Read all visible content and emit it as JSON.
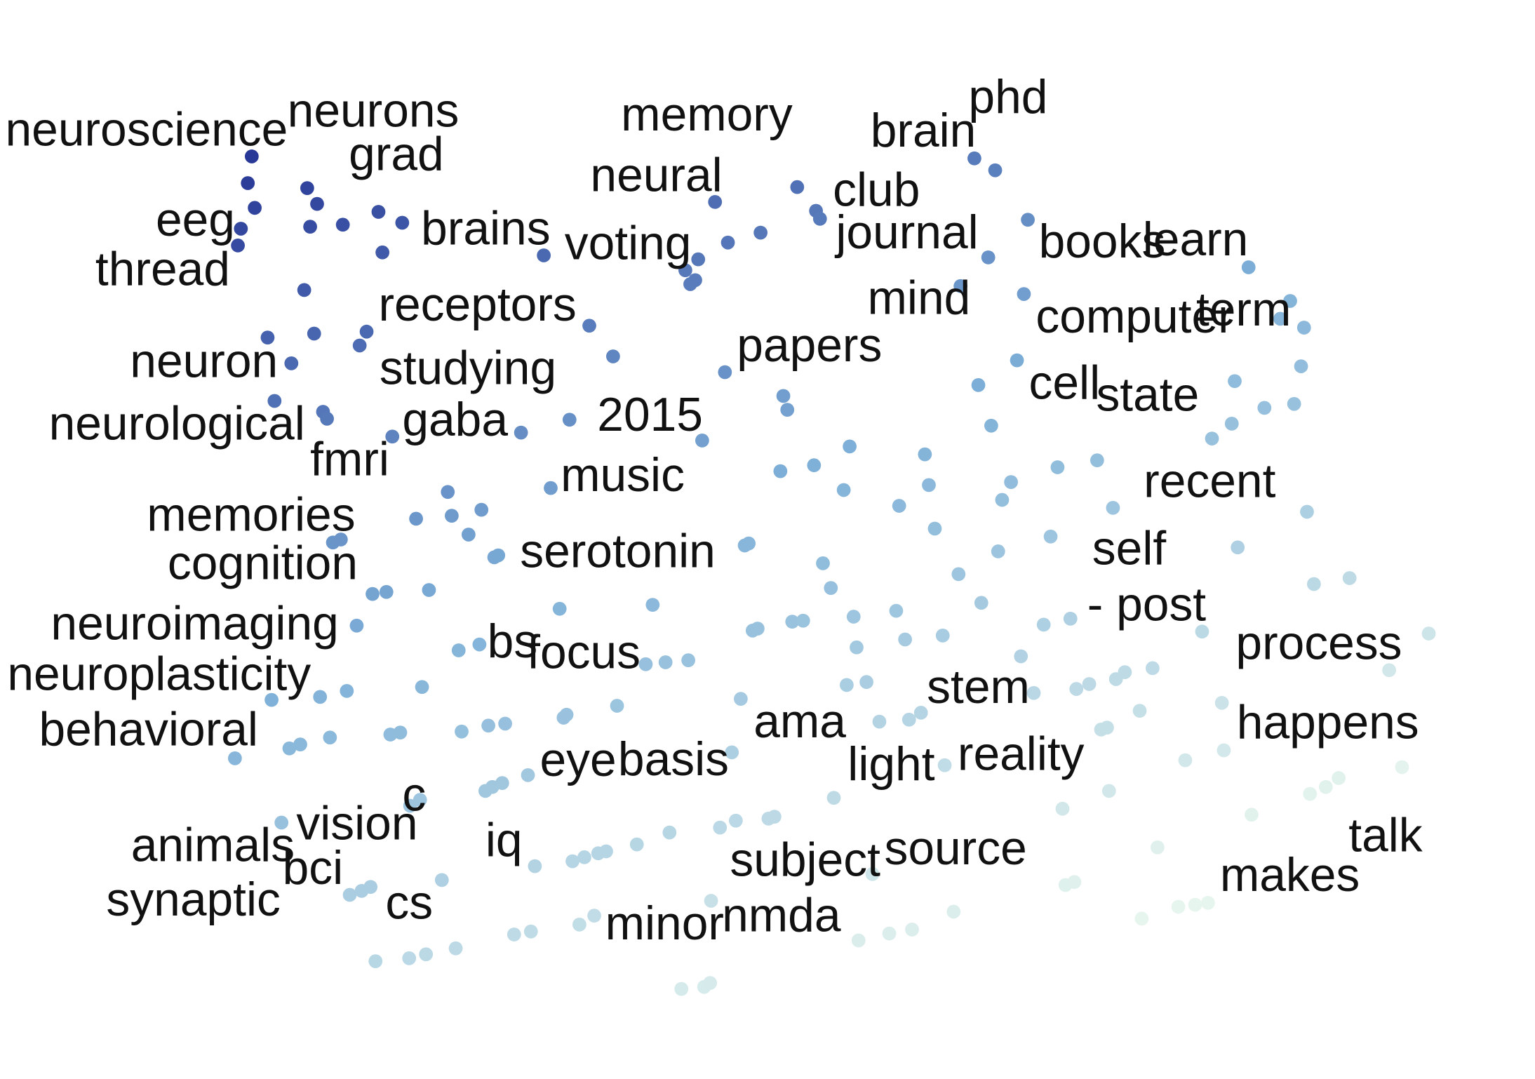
{
  "chart_data": {
    "type": "scatter",
    "title": "",
    "xlabel": "",
    "ylabel": "",
    "xlim": [
      0,
      1550
    ],
    "ylim": [
      0,
      1090
    ],
    "grid": false,
    "legend": "none",
    "color_scale": {
      "low": "#e6f5ee",
      "mid": "#7eb0d8",
      "high": "#253494"
    },
    "labels": [
      {
        "text": "neuroscience",
        "x": 5,
        "y": 135
      },
      {
        "text": "neurons",
        "x": 290,
        "y": 116
      },
      {
        "text": "memory",
        "x": 627,
        "y": 120
      },
      {
        "text": "phd",
        "x": 978,
        "y": 102
      },
      {
        "text": "brain",
        "x": 879,
        "y": 136
      },
      {
        "text": "grad",
        "x": 352,
        "y": 160
      },
      {
        "text": "neural",
        "x": 596,
        "y": 181
      },
      {
        "text": "club",
        "x": 841,
        "y": 196
      },
      {
        "text": "eeg",
        "x": 157,
        "y": 226
      },
      {
        "text": "brains",
        "x": 425,
        "y": 235
      },
      {
        "text": "voting",
        "x": 570,
        "y": 250
      },
      {
        "text": "journal",
        "x": 844,
        "y": 239
      },
      {
        "text": "books",
        "x": 1049,
        "y": 248
      },
      {
        "text": "learn",
        "x": 1154,
        "y": 246
      },
      {
        "text": "thread",
        "x": 96,
        "y": 276
      },
      {
        "text": "mind",
        "x": 876,
        "y": 305
      },
      {
        "text": "receptors",
        "x": 382,
        "y": 312
      },
      {
        "text": "computer",
        "x": 1046,
        "y": 324
      },
      {
        "text": "term",
        "x": 1208,
        "y": 317
      },
      {
        "text": "papers",
        "x": 744,
        "y": 353
      },
      {
        "text": "neuron",
        "x": 131,
        "y": 369
      },
      {
        "text": "studying",
        "x": 383,
        "y": 376
      },
      {
        "text": "cell",
        "x": 1039,
        "y": 391
      },
      {
        "text": "state",
        "x": 1107,
        "y": 403
      },
      {
        "text": "neurological",
        "x": 49,
        "y": 432
      },
      {
        "text": "gaba",
        "x": 406,
        "y": 428
      },
      {
        "text": "2015",
        "x": 603,
        "y": 423
      },
      {
        "text": "fmri",
        "x": 313,
        "y": 468
      },
      {
        "text": "music",
        "x": 566,
        "y": 484
      },
      {
        "text": "recent",
        "x": 1155,
        "y": 490
      },
      {
        "text": "memories",
        "x": 148,
        "y": 524
      },
      {
        "text": "serotonin",
        "x": 525,
        "y": 561
      },
      {
        "text": "self",
        "x": 1103,
        "y": 558
      },
      {
        "text": "cognition",
        "x": 169,
        "y": 573
      },
      {
        "text": "- post",
        "x": 1098,
        "y": 615
      },
      {
        "text": "neuroimaging",
        "x": 51,
        "y": 634
      },
      {
        "text": "bs",
        "x": 492,
        "y": 652
      },
      {
        "text": "focus",
        "x": 532,
        "y": 663
      },
      {
        "text": "process",
        "x": 1248,
        "y": 654
      },
      {
        "text": "neuroplasticity",
        "x": 7,
        "y": 685
      },
      {
        "text": "stem",
        "x": 936,
        "y": 698
      },
      {
        "text": "behavioral",
        "x": 39,
        "y": 741
      },
      {
        "text": "ama",
        "x": 761,
        "y": 733
      },
      {
        "text": "happens",
        "x": 1249,
        "y": 734
      },
      {
        "text": "reality",
        "x": 967,
        "y": 766
      },
      {
        "text": "eye",
        "x": 545,
        "y": 772
      },
      {
        "text": "basis",
        "x": 624,
        "y": 771
      },
      {
        "text": "light",
        "x": 856,
        "y": 776
      },
      {
        "text": "c",
        "x": 406,
        "y": 807
      },
      {
        "text": "vision",
        "x": 299,
        "y": 836
      },
      {
        "text": "iq",
        "x": 490,
        "y": 853
      },
      {
        "text": "talk",
        "x": 1362,
        "y": 848
      },
      {
        "text": "animals",
        "x": 132,
        "y": 858
      },
      {
        "text": "subject",
        "x": 737,
        "y": 873
      },
      {
        "text": "source",
        "x": 893,
        "y": 861
      },
      {
        "text": "bci",
        "x": 285,
        "y": 881
      },
      {
        "text": "makes",
        "x": 1232,
        "y": 888
      },
      {
        "text": "synaptic",
        "x": 107,
        "y": 913
      },
      {
        "text": "cs",
        "x": 389,
        "y": 916
      },
      {
        "text": "nmda",
        "x": 729,
        "y": 929
      },
      {
        "text": "minor",
        "x": 611,
        "y": 937
      }
    ],
    "points": [
      [
        254,
        158
      ],
      [
        250,
        185
      ],
      [
        257,
        210
      ],
      [
        243,
        231
      ],
      [
        240,
        248
      ],
      [
        310,
        190
      ],
      [
        320,
        206
      ],
      [
        313,
        229
      ],
      [
        346,
        227
      ],
      [
        382,
        214
      ],
      [
        406,
        225
      ],
      [
        386,
        255
      ],
      [
        549,
        258
      ],
      [
        307,
        293
      ],
      [
        270,
        341
      ],
      [
        317,
        337
      ],
      [
        370,
        335
      ],
      [
        363,
        349
      ],
      [
        294,
        367
      ],
      [
        277,
        405
      ],
      [
        326,
        416
      ],
      [
        330,
        423
      ],
      [
        396,
        441
      ],
      [
        526,
        437
      ],
      [
        575,
        424
      ],
      [
        595,
        329
      ],
      [
        619,
        360
      ],
      [
        722,
        204
      ],
      [
        805,
        189
      ],
      [
        824,
        213
      ],
      [
        828,
        221
      ],
      [
        768,
        235
      ],
      [
        735,
        245
      ],
      [
        705,
        262
      ],
      [
        692,
        273
      ],
      [
        697,
        287
      ],
      [
        702,
        283
      ],
      [
        732,
        376
      ],
      [
        791,
        400
      ],
      [
        795,
        414
      ],
      [
        709,
        445
      ],
      [
        984,
        160
      ],
      [
        1005,
        172
      ],
      [
        1038,
        222
      ],
      [
        998,
        260
      ],
      [
        970,
        289
      ],
      [
        1034,
        297
      ],
      [
        1027,
        364
      ],
      [
        988,
        389
      ],
      [
        1001,
        430
      ],
      [
        1261,
        270
      ],
      [
        1303,
        304
      ],
      [
        1293,
        322
      ],
      [
        1317,
        331
      ],
      [
        1314,
        370
      ],
      [
        1247,
        385
      ],
      [
        1244,
        428
      ],
      [
        1224,
        443
      ],
      [
        1277,
        412
      ],
      [
        1307,
        408
      ],
      [
        1320,
        517
      ],
      [
        1250,
        553
      ],
      [
        788,
        476
      ],
      [
        822,
        470
      ],
      [
        858,
        451
      ],
      [
        852,
        495
      ],
      [
        934,
        459
      ],
      [
        938,
        490
      ],
      [
        908,
        511
      ],
      [
        944,
        534
      ],
      [
        1021,
        487
      ],
      [
        1012,
        505
      ],
      [
        1068,
        472
      ],
      [
        1108,
        465
      ],
      [
        1124,
        513
      ],
      [
        1061,
        542
      ],
      [
        1008,
        557
      ],
      [
        968,
        580
      ],
      [
        991,
        609
      ],
      [
        1054,
        631
      ],
      [
        1081,
        625
      ],
      [
        452,
        497
      ],
      [
        420,
        524
      ],
      [
        456,
        521
      ],
      [
        486,
        515
      ],
      [
        473,
        540
      ],
      [
        499,
        563
      ],
      [
        503,
        561
      ],
      [
        556,
        493
      ],
      [
        752,
        551
      ],
      [
        756,
        549
      ],
      [
        831,
        569
      ],
      [
        839,
        594
      ],
      [
        336,
        548
      ],
      [
        344,
        545
      ],
      [
        376,
        600
      ],
      [
        390,
        598
      ],
      [
        433,
        596
      ],
      [
        360,
        632
      ],
      [
        565,
        615
      ],
      [
        659,
        611
      ],
      [
        862,
        623
      ],
      [
        905,
        617
      ],
      [
        765,
        635
      ],
      [
        760,
        637
      ],
      [
        800,
        628
      ],
      [
        811,
        627
      ],
      [
        865,
        654
      ],
      [
        914,
        646
      ],
      [
        952,
        642
      ],
      [
        463,
        657
      ],
      [
        484,
        651
      ],
      [
        652,
        671
      ],
      [
        672,
        669
      ],
      [
        695,
        667
      ],
      [
        274,
        707
      ],
      [
        323,
        704
      ],
      [
        350,
        698
      ],
      [
        426,
        694
      ],
      [
        572,
        722
      ],
      [
        569,
        725
      ],
      [
        623,
        713
      ],
      [
        748,
        706
      ],
      [
        855,
        692
      ],
      [
        875,
        689
      ],
      [
        292,
        756
      ],
      [
        303,
        752
      ],
      [
        237,
        766
      ],
      [
        333,
        745
      ],
      [
        394,
        742
      ],
      [
        404,
        740
      ],
      [
        466,
        739
      ],
      [
        493,
        733
      ],
      [
        510,
        731
      ],
      [
        888,
        729
      ],
      [
        918,
        727
      ],
      [
        930,
        720
      ],
      [
        739,
        760
      ],
      [
        1031,
        663
      ],
      [
        1044,
        700
      ],
      [
        1087,
        696
      ],
      [
        1100,
        691
      ],
      [
        1127,
        686
      ],
      [
        1136,
        679
      ],
      [
        1164,
        675
      ],
      [
        1214,
        638
      ],
      [
        1363,
        584
      ],
      [
        1327,
        590
      ],
      [
        1443,
        640
      ],
      [
        1403,
        677
      ],
      [
        1234,
        710
      ],
      [
        1151,
        718
      ],
      [
        1112,
        737
      ],
      [
        1118,
        735
      ],
      [
        1236,
        758
      ],
      [
        1197,
        768
      ],
      [
        1416,
        775
      ],
      [
        1352,
        786
      ],
      [
        1339,
        795
      ],
      [
        1323,
        802
      ],
      [
        954,
        773
      ],
      [
        1120,
        799
      ],
      [
        1264,
        823
      ],
      [
        1169,
        856
      ],
      [
        842,
        806
      ],
      [
        1073,
        817
      ],
      [
        533,
        783
      ],
      [
        490,
        799
      ],
      [
        497,
        795
      ],
      [
        507,
        791
      ],
      [
        424,
        808
      ],
      [
        414,
        814
      ],
      [
        284,
        831
      ],
      [
        353,
        904
      ],
      [
        365,
        900
      ],
      [
        374,
        896
      ],
      [
        446,
        889
      ],
      [
        540,
        875
      ],
      [
        578,
        870
      ],
      [
        590,
        866
      ],
      [
        604,
        862
      ],
      [
        612,
        860
      ],
      [
        643,
        853
      ],
      [
        676,
        841
      ],
      [
        727,
        836
      ],
      [
        743,
        829
      ],
      [
        776,
        827
      ],
      [
        782,
        825
      ],
      [
        881,
        883
      ],
      [
        718,
        910
      ],
      [
        600,
        925
      ],
      [
        585,
        934
      ],
      [
        536,
        941
      ],
      [
        519,
        944
      ],
      [
        460,
        958
      ],
      [
        430,
        964
      ],
      [
        413,
        968
      ],
      [
        379,
        971
      ],
      [
        963,
        921
      ],
      [
        921,
        939
      ],
      [
        898,
        943
      ],
      [
        867,
        950
      ],
      [
        1076,
        894
      ],
      [
        1085,
        891
      ],
      [
        1190,
        916
      ],
      [
        1207,
        914
      ],
      [
        1220,
        912
      ],
      [
        1153,
        928
      ],
      [
        688,
        999
      ],
      [
        711,
        997
      ],
      [
        717,
        993
      ]
    ]
  }
}
